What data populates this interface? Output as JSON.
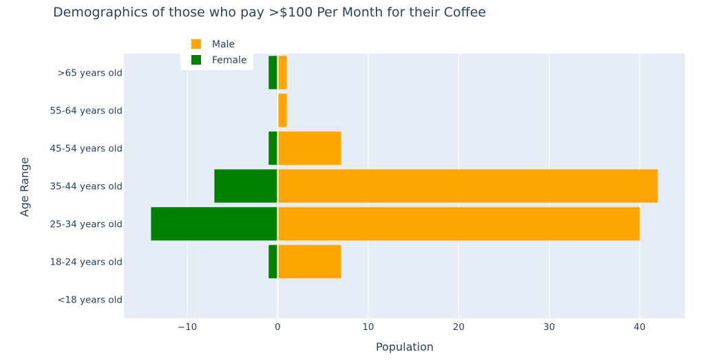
{
  "chart_data": {
    "type": "bar",
    "orientation": "horizontal",
    "title": "Demographics of those who pay >$100 Per Month for their Coffee",
    "xlabel": "Population",
    "ylabel": "Age Range",
    "categories": [
      "<18 years old",
      "18-24 years old",
      "25-34 years old",
      "35-44 years old",
      "45-54 years old",
      "55-64 years old",
      ">65 years old"
    ],
    "series": [
      {
        "name": "Male",
        "color": "#FFA500",
        "values": [
          0,
          7,
          40,
          42,
          7,
          1,
          1
        ]
      },
      {
        "name": "Female",
        "color": "#008000",
        "values": [
          0,
          -1,
          -14,
          -7,
          -1,
          0,
          -1
        ]
      }
    ],
    "xlim": [
      -17,
      45
    ],
    "xticks": [
      -10,
      0,
      10,
      20,
      30,
      40
    ],
    "xtick_labels": [
      "−10",
      "0",
      "10",
      "20",
      "30",
      "40"
    ],
    "barmode": "overlay",
    "grid": true,
    "legend_position": "top-left",
    "plot_background": "#E5ECF6",
    "text_color": "#2a3f5f"
  }
}
